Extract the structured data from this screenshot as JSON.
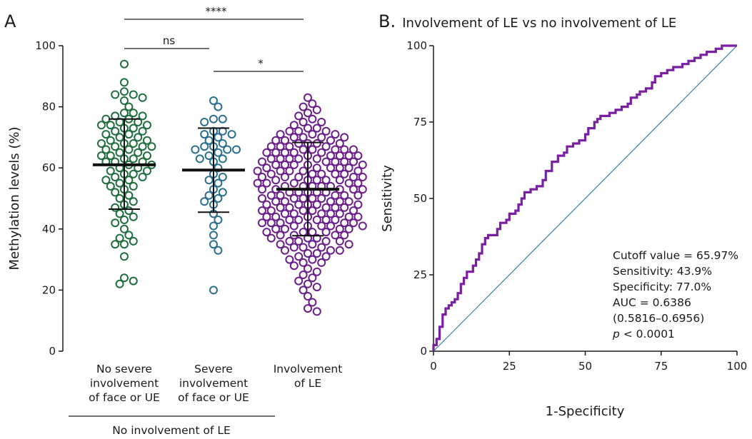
{
  "chart_data": [
    {
      "type": "scatter",
      "panel_label": "A",
      "ylabel": "Methylation levels (%)",
      "ylim": [
        0,
        100
      ],
      "yticks": [
        "0",
        "20",
        "40",
        "60",
        "80",
        "100"
      ],
      "categories": [
        [
          "No severe",
          "involvement",
          "of face or UE"
        ],
        [
          "Severe",
          "involvement",
          "of face or UE"
        ],
        [
          "Involvement",
          "of LE"
        ]
      ],
      "group_bracket_label": "No involvement of LE",
      "series_colors": [
        "#1e6e3e",
        "#2a6f90",
        "#6a1e8c"
      ],
      "summary": [
        {
          "mean": 61,
          "sd_low": 46.5,
          "sd_high": 76
        },
        {
          "mean": 59.3,
          "sd_low": 45.5,
          "sd_high": 73
        },
        {
          "mean": 53,
          "sd_low": 37.8,
          "sd_high": 68.3
        }
      ],
      "points": [
        [
          94,
          88,
          85,
          84,
          84,
          83,
          82,
          80,
          78,
          78,
          77,
          77,
          76,
          76,
          75,
          75,
          74,
          74,
          74,
          73,
          73,
          72,
          72,
          71,
          71,
          70,
          70,
          69,
          69,
          68,
          68,
          68,
          67,
          67,
          67,
          66,
          66,
          65,
          65,
          64,
          64,
          64,
          63,
          63,
          62,
          62,
          62,
          61,
          61,
          60,
          60,
          59,
          59,
          58,
          58,
          57,
          57,
          56,
          56,
          55,
          54,
          54,
          53,
          52,
          51,
          50,
          49,
          48,
          47,
          46,
          45,
          44,
          43,
          42,
          40,
          38,
          37,
          36,
          35,
          35,
          31,
          24,
          23,
          22
        ],
        [
          82,
          80,
          76,
          76,
          75,
          72,
          72,
          71,
          71,
          70,
          69,
          68,
          67,
          67,
          66,
          66,
          66,
          65,
          64,
          63,
          63,
          62,
          60,
          58,
          57,
          56,
          55,
          53,
          52,
          51,
          50,
          49,
          48,
          45,
          43,
          41,
          38,
          35,
          33,
          20
        ],
        [
          83,
          81,
          80,
          79,
          78,
          77,
          76,
          75,
          75,
          74,
          73,
          73,
          72,
          72,
          71,
          71,
          71,
          70,
          70,
          70,
          69,
          69,
          69,
          68,
          68,
          68,
          67,
          67,
          67,
          67,
          66,
          66,
          66,
          66,
          65,
          65,
          65,
          65,
          64,
          64,
          64,
          64,
          63,
          63,
          63,
          63,
          62,
          62,
          62,
          62,
          61,
          61,
          61,
          61,
          60,
          60,
          60,
          60,
          59,
          59,
          59,
          59,
          58,
          58,
          58,
          58,
          57,
          57,
          57,
          57,
          56,
          56,
          56,
          56,
          55,
          55,
          55,
          55,
          54,
          54,
          54,
          54,
          53,
          53,
          53,
          53,
          52,
          52,
          52,
          52,
          51,
          51,
          51,
          51,
          50,
          50,
          50,
          50,
          49,
          49,
          49,
          49,
          48,
          48,
          48,
          48,
          47,
          47,
          47,
          47,
          46,
          46,
          46,
          46,
          45,
          45,
          45,
          45,
          44,
          44,
          44,
          44,
          43,
          43,
          43,
          43,
          42,
          42,
          42,
          42,
          41,
          41,
          41,
          41,
          40,
          40,
          40,
          40,
          39,
          39,
          39,
          39,
          38,
          38,
          38,
          37,
          37,
          37,
          36,
          36,
          36,
          35,
          35,
          35,
          34,
          34,
          33,
          33,
          32,
          32,
          31,
          31,
          30,
          30,
          29,
          29,
          28,
          27,
          26,
          25,
          24,
          23,
          22,
          21,
          20,
          18,
          16,
          14,
          13,
          45,
          50,
          55,
          60,
          65,
          47,
          52,
          57,
          62,
          42,
          48,
          54,
          58,
          63,
          44,
          49,
          53,
          61,
          66,
          46,
          51,
          56,
          59,
          64,
          43,
          41,
          68,
          70,
          72,
          38,
          36,
          34,
          33
        ]
      ],
      "comparisons": [
        {
          "label": "****",
          "from": 0,
          "to": 2,
          "level": 0
        },
        {
          "label": "ns",
          "from": 0,
          "to": 1,
          "level": 1
        },
        {
          "label": "*",
          "from": 1,
          "to": 2,
          "level": 2
        }
      ]
    },
    {
      "type": "line",
      "panel_label": "B.",
      "title": "Involvement of LE vs no involvement of LE",
      "xlabel": "1-Specificity",
      "ylabel": "Sensitivity",
      "xlim": [
        0,
        100
      ],
      "ylim": [
        0,
        100
      ],
      "xticks": [
        "0",
        "25",
        "50",
        "75",
        "100"
      ],
      "yticks": [
        "0",
        "25",
        "50",
        "75",
        "100"
      ],
      "roc_color": "#7a1fa2",
      "reference_color": "#3a7fa8",
      "roc_points": [
        [
          0,
          0
        ],
        [
          0,
          2
        ],
        [
          1,
          2
        ],
        [
          1,
          4
        ],
        [
          2,
          4
        ],
        [
          2,
          8
        ],
        [
          3,
          8
        ],
        [
          3,
          12
        ],
        [
          4,
          12
        ],
        [
          4,
          14
        ],
        [
          5,
          14
        ],
        [
          5,
          15
        ],
        [
          6,
          15
        ],
        [
          6,
          16
        ],
        [
          7,
          16
        ],
        [
          7,
          17
        ],
        [
          8,
          17
        ],
        [
          8,
          19
        ],
        [
          9,
          19
        ],
        [
          9,
          22
        ],
        [
          10,
          22
        ],
        [
          10,
          24
        ],
        [
          11,
          24
        ],
        [
          11,
          26
        ],
        [
          13,
          26
        ],
        [
          13,
          28
        ],
        [
          14,
          28
        ],
        [
          14,
          30
        ],
        [
          15,
          30
        ],
        [
          15,
          32
        ],
        [
          16,
          32
        ],
        [
          16,
          35
        ],
        [
          17,
          35
        ],
        [
          17,
          37
        ],
        [
          18,
          37
        ],
        [
          18,
          38
        ],
        [
          21,
          38
        ],
        [
          21,
          40
        ],
        [
          22,
          40
        ],
        [
          22,
          42
        ],
        [
          24,
          42
        ],
        [
          24,
          43
        ],
        [
          25,
          43
        ],
        [
          25,
          45
        ],
        [
          27,
          45
        ],
        [
          27,
          46
        ],
        [
          28,
          46
        ],
        [
          28,
          48
        ],
        [
          29,
          48
        ],
        [
          29,
          50
        ],
        [
          30,
          50
        ],
        [
          30,
          52
        ],
        [
          32,
          52
        ],
        [
          32,
          53
        ],
        [
          34,
          53
        ],
        [
          34,
          54
        ],
        [
          36,
          54
        ],
        [
          36,
          56
        ],
        [
          37,
          56
        ],
        [
          37,
          59
        ],
        [
          39,
          59
        ],
        [
          39,
          62
        ],
        [
          41,
          62
        ],
        [
          41,
          64
        ],
        [
          43,
          64
        ],
        [
          43,
          65
        ],
        [
          44,
          65
        ],
        [
          44,
          67
        ],
        [
          46,
          67
        ],
        [
          46,
          68
        ],
        [
          48,
          68
        ],
        [
          48,
          69
        ],
        [
          50,
          69
        ],
        [
          50,
          71
        ],
        [
          51,
          71
        ],
        [
          51,
          73
        ],
        [
          53,
          73
        ],
        [
          53,
          75
        ],
        [
          54,
          75
        ],
        [
          54,
          76
        ],
        [
          55,
          76
        ],
        [
          55,
          77
        ],
        [
          58,
          77
        ],
        [
          58,
          78
        ],
        [
          60,
          78
        ],
        [
          60,
          79
        ],
        [
          62,
          79
        ],
        [
          62,
          80
        ],
        [
          64,
          80
        ],
        [
          64,
          81
        ],
        [
          65,
          81
        ],
        [
          65,
          83
        ],
        [
          67,
          83
        ],
        [
          67,
          84
        ],
        [
          68,
          84
        ],
        [
          68,
          85
        ],
        [
          70,
          85
        ],
        [
          70,
          86
        ],
        [
          72,
          86
        ],
        [
          72,
          88
        ],
        [
          73,
          88
        ],
        [
          73,
          90
        ],
        [
          75,
          90
        ],
        [
          75,
          91
        ],
        [
          77,
          91
        ],
        [
          77,
          92
        ],
        [
          79,
          92
        ],
        [
          79,
          93
        ],
        [
          82,
          93
        ],
        [
          82,
          94
        ],
        [
          84,
          94
        ],
        [
          84,
          95
        ],
        [
          86,
          95
        ],
        [
          86,
          96
        ],
        [
          88,
          96
        ],
        [
          88,
          97
        ],
        [
          90,
          97
        ],
        [
          90,
          98
        ],
        [
          93,
          98
        ],
        [
          93,
          99
        ],
        [
          95,
          99
        ],
        [
          95,
          100
        ],
        [
          100,
          100
        ]
      ],
      "annotation": {
        "line1": "Cutoff value = 65.97%",
        "line2": "Sensitivity: 43.9%",
        "line3": "Specificity: 77.0%",
        "line4": "AUC = 0.6386",
        "line5": "(0.5816–0.6956)",
        "p_symbol": "p",
        "p_rest": " < 0.0001"
      }
    }
  ]
}
